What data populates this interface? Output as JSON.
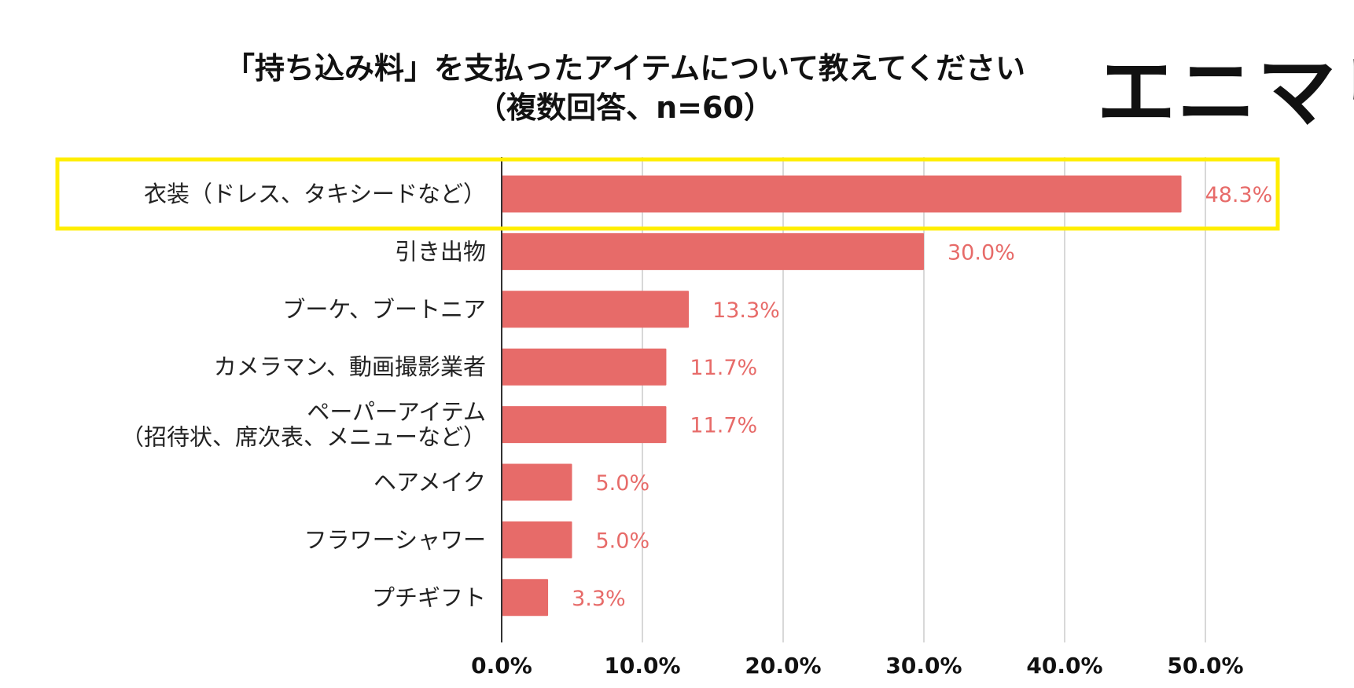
{
  "brand": {
    "logo_text": "エニマリ"
  },
  "chart_data": {
    "type": "bar",
    "orientation": "horizontal",
    "title": "「持ち込み料」を支払ったアイテムについて教えてください",
    "subtitle": "（複数回答、n=60）",
    "categories": [
      [
        "衣装（ドレス、タキシードなど）"
      ],
      [
        "引き出物"
      ],
      [
        "ブーケ、ブートニア"
      ],
      [
        "カメラマン、動画撮影業者"
      ],
      [
        "ペーパーアイテム",
        "（招待状、席次表、メニューなど）"
      ],
      [
        "ヘアメイク"
      ],
      [
        "フラワーシャワー"
      ],
      [
        "プチギフト"
      ]
    ],
    "values": [
      48.3,
      30.0,
      13.3,
      11.7,
      11.7,
      5.0,
      5.0,
      3.3
    ],
    "value_labels": [
      "48.3%",
      "30.0%",
      "13.3%",
      "11.7%",
      "11.7%",
      "5.0%",
      "5.0%",
      "3.3%"
    ],
    "xlim": [
      0,
      50
    ],
    "ticks": [
      0,
      10,
      20,
      30,
      40,
      50
    ],
    "tick_labels": [
      "0.0%",
      "10.0%",
      "20.0%",
      "30.0%",
      "40.0%",
      "50.0%"
    ],
    "grid": true,
    "highlight_index": 0,
    "colors": {
      "bar": "#e76b69",
      "value_label": "#e76b69",
      "grid": "#cccccc",
      "axis": "#333333",
      "highlight": "#ffee00"
    }
  }
}
